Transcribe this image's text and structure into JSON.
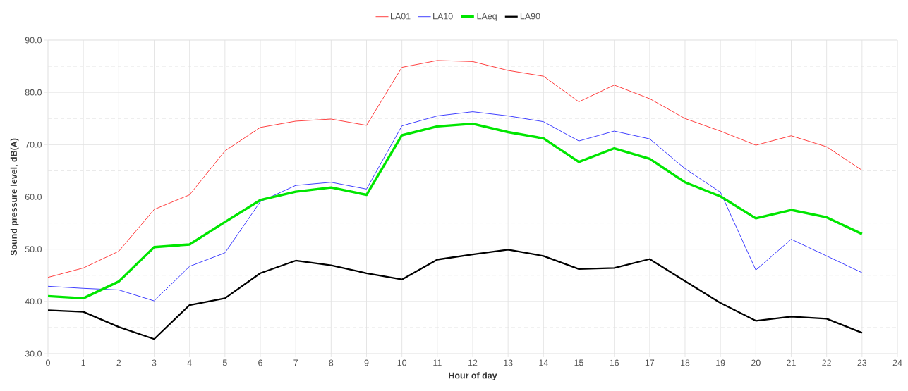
{
  "chart_data": {
    "type": "line",
    "xlabel": "Hour of day",
    "ylabel": "Sound pressure level, dB(A)",
    "x": [
      0,
      1,
      2,
      3,
      4,
      5,
      6,
      7,
      8,
      9,
      10,
      11,
      12,
      13,
      14,
      15,
      16,
      17,
      18,
      19,
      20,
      21,
      22,
      23
    ],
    "series": [
      {
        "name": "LA01",
        "color": "#ff4040",
        "values": [
          44.6,
          46.4,
          49.6,
          57.6,
          60.4,
          68.8,
          73.3,
          74.5,
          74.9,
          73.7,
          84.8,
          86.1,
          85.9,
          84.2,
          83.1,
          78.2,
          81.4,
          78.8,
          75.0,
          72.6,
          69.9,
          71.7,
          69.6,
          65.1
        ]
      },
      {
        "name": "LA10",
        "color": "#4040ff",
        "values": [
          42.9,
          42.5,
          42.2,
          40.1,
          46.7,
          49.3,
          59.1,
          62.2,
          62.8,
          61.5,
          73.6,
          75.5,
          76.3,
          75.5,
          74.4,
          70.7,
          72.6,
          71.1,
          65.4,
          60.9,
          46.0,
          51.9,
          48.7,
          45.5
        ]
      },
      {
        "name": "LAeq",
        "color": "#00e600",
        "values": [
          41.0,
          40.6,
          43.8,
          50.4,
          50.9,
          55.2,
          59.4,
          61.0,
          61.8,
          60.4,
          71.8,
          73.5,
          74.0,
          72.4,
          71.2,
          66.7,
          69.3,
          67.3,
          62.8,
          60.1,
          55.9,
          57.5,
          56.1,
          52.9
        ]
      },
      {
        "name": "LA90",
        "color": "#000000",
        "values": [
          38.3,
          38.0,
          35.1,
          32.8,
          39.3,
          40.6,
          45.4,
          47.8,
          46.9,
          45.4,
          44.2,
          48.0,
          49.0,
          49.9,
          48.7,
          46.2,
          46.4,
          48.1,
          43.9,
          39.7,
          36.3,
          37.1,
          36.7,
          34.0
        ]
      }
    ],
    "xlim": [
      0,
      24
    ],
    "xticks": [
      0,
      1,
      2,
      3,
      4,
      5,
      6,
      7,
      8,
      9,
      10,
      11,
      12,
      13,
      14,
      15,
      16,
      17,
      18,
      19,
      20,
      21,
      22,
      23,
      24
    ],
    "ylim": [
      30,
      90
    ],
    "yticks": [
      {
        "value": 30,
        "label": "30.0"
      },
      {
        "value": 35,
        "label": null
      },
      {
        "value": 40,
        "label": "40.0"
      },
      {
        "value": 45,
        "label": null
      },
      {
        "value": 50,
        "label": "50.0"
      },
      {
        "value": 55,
        "label": null
      },
      {
        "value": 60,
        "label": "60.0"
      },
      {
        "value": 65,
        "label": null
      },
      {
        "value": 70,
        "label": "70.0"
      },
      {
        "value": 75,
        "label": null
      },
      {
        "value": 80,
        "label": "80.0"
      },
      {
        "value": 85,
        "label": null
      },
      {
        "value": 90,
        "label": "90.0"
      }
    ],
    "grid": true,
    "legend": "top"
  }
}
